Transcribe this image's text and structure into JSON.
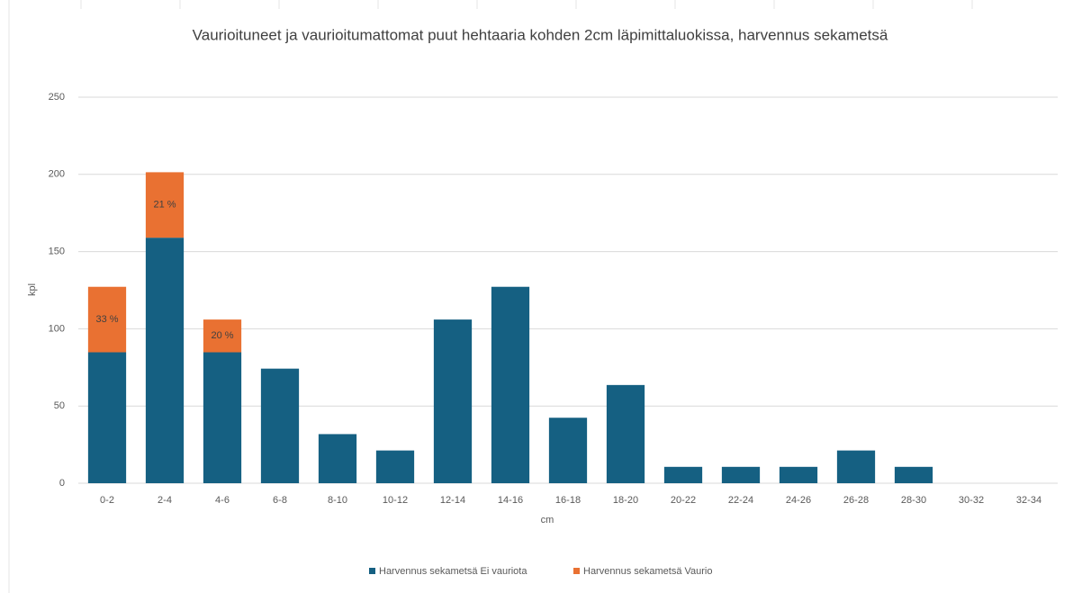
{
  "chart_data": {
    "type": "stacked_bar",
    "title": "Vaurioituneet ja vaurioitumattomat puut hehtaaria kohden 2cm läpimittaluokissa, harvennus sekametsä",
    "xlabel": "cm",
    "ylabel": "kpl",
    "categories": [
      "0-2",
      "2-4",
      "4-6",
      "6-8",
      "8-10",
      "10-12",
      "12-14",
      "14-16",
      "16-18",
      "18-20",
      "20-22",
      "22-24",
      "24-26",
      "26-28",
      "28-30",
      "30-32",
      "32-34"
    ],
    "series": [
      {
        "name": "Harvennus sekametsä Ei vauriota",
        "color": "#156082",
        "values": [
          84.8,
          159,
          84.8,
          74.2,
          31.8,
          21.2,
          106,
          127.2,
          42.4,
          63.6,
          10.6,
          10.6,
          10.6,
          21.2,
          10.6,
          0,
          0
        ]
      },
      {
        "name": "Harvennus sekametsä Vaurio",
        "color": "#e97132",
        "values": [
          42.4,
          42.4,
          21.2,
          0,
          0,
          0,
          0,
          0,
          0,
          0,
          0,
          0,
          0,
          0,
          0,
          0,
          0
        ]
      }
    ],
    "annotations": [
      "33 %",
      "21 %",
      "20 %"
    ],
    "ylim": [
      0,
      250
    ],
    "yticks": [
      0,
      50,
      100,
      150,
      200,
      250
    ],
    "grid": true,
    "legend": "bottom"
  }
}
